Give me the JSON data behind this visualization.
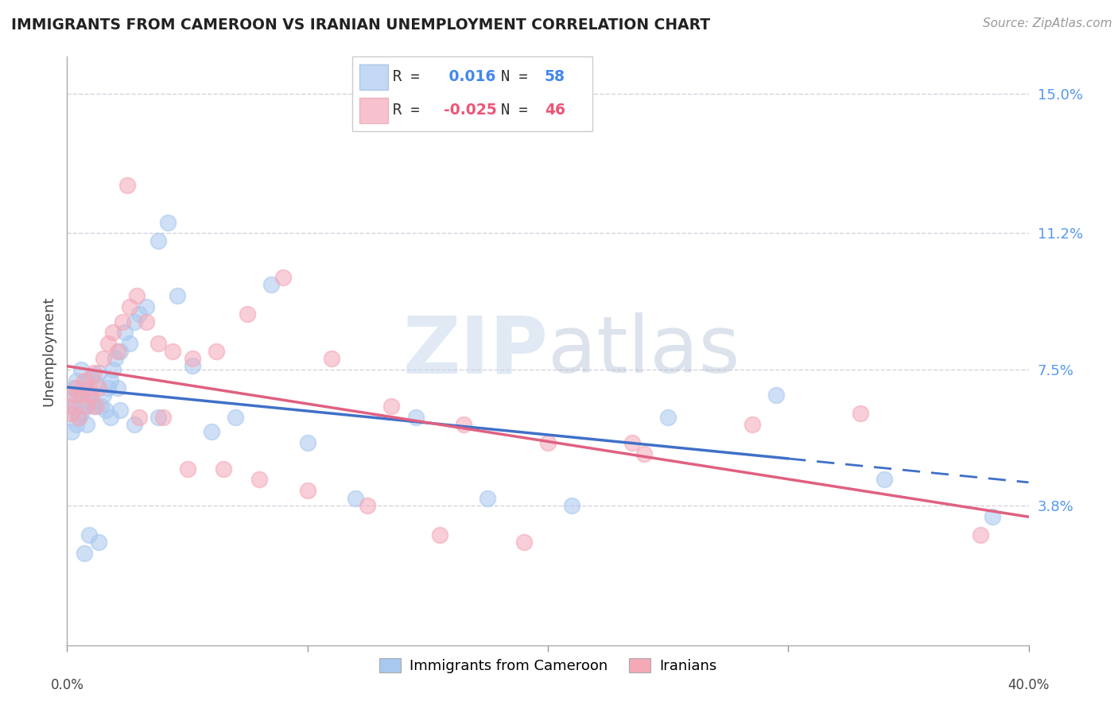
{
  "title": "IMMIGRANTS FROM CAMEROON VS IRANIAN UNEMPLOYMENT CORRELATION CHART",
  "source": "Source: ZipAtlas.com",
  "ylabel": "Unemployment",
  "xmin": 0.0,
  "xmax": 0.4,
  "ymin": 0.0,
  "ymax": 0.16,
  "ytick_vals": [
    0.038,
    0.075,
    0.112,
    0.15
  ],
  "ytick_labels": [
    "3.8%",
    "7.5%",
    "11.2%",
    "15.0%"
  ],
  "legend1_r": " 0.016",
  "legend1_n": "58",
  "legend2_r": "-0.025",
  "legend2_n": "46",
  "blue_color": "#A8C8F0",
  "pink_color": "#F4A8B8",
  "blue_line_color": "#4070C8",
  "pink_line_color": "#E06080",
  "grid_color": "#C8C8D8",
  "watermark_zip": "ZIP",
  "watermark_atlas": "atlas",
  "blue_scatter_x": [
    0.001,
    0.002,
    0.002,
    0.003,
    0.003,
    0.004,
    0.004,
    0.005,
    0.005,
    0.006,
    0.006,
    0.007,
    0.007,
    0.008,
    0.008,
    0.009,
    0.01,
    0.01,
    0.011,
    0.012,
    0.013,
    0.014,
    0.015,
    0.016,
    0.017,
    0.018,
    0.019,
    0.02,
    0.021,
    0.022,
    0.024,
    0.026,
    0.028,
    0.03,
    0.033,
    0.038,
    0.042,
    0.046,
    0.052,
    0.06,
    0.07,
    0.085,
    0.1,
    0.12,
    0.145,
    0.175,
    0.21,
    0.25,
    0.295,
    0.34,
    0.385,
    0.028,
    0.038,
    0.018,
    0.022,
    0.009,
    0.013,
    0.007
  ],
  "blue_scatter_y": [
    0.067,
    0.063,
    0.058,
    0.065,
    0.07,
    0.06,
    0.072,
    0.068,
    0.062,
    0.075,
    0.063,
    0.069,
    0.065,
    0.072,
    0.06,
    0.068,
    0.066,
    0.073,
    0.065,
    0.071,
    0.074,
    0.065,
    0.068,
    0.064,
    0.07,
    0.072,
    0.075,
    0.078,
    0.07,
    0.08,
    0.085,
    0.082,
    0.088,
    0.09,
    0.092,
    0.11,
    0.115,
    0.095,
    0.076,
    0.058,
    0.062,
    0.098,
    0.055,
    0.04,
    0.062,
    0.04,
    0.038,
    0.062,
    0.068,
    0.045,
    0.035,
    0.06,
    0.062,
    0.062,
    0.064,
    0.03,
    0.028,
    0.025
  ],
  "pink_scatter_x": [
    0.001,
    0.002,
    0.003,
    0.004,
    0.005,
    0.006,
    0.007,
    0.008,
    0.009,
    0.01,
    0.011,
    0.012,
    0.013,
    0.015,
    0.017,
    0.019,
    0.021,
    0.023,
    0.026,
    0.029,
    0.033,
    0.038,
    0.044,
    0.052,
    0.062,
    0.075,
    0.09,
    0.11,
    0.135,
    0.165,
    0.2,
    0.24,
    0.285,
    0.33,
    0.38,
    0.025,
    0.03,
    0.04,
    0.05,
    0.065,
    0.08,
    0.1,
    0.125,
    0.155,
    0.19,
    0.235
  ],
  "pink_scatter_y": [
    0.065,
    0.063,
    0.068,
    0.07,
    0.062,
    0.068,
    0.072,
    0.065,
    0.07,
    0.068,
    0.074,
    0.065,
    0.07,
    0.078,
    0.082,
    0.085,
    0.08,
    0.088,
    0.092,
    0.095,
    0.088,
    0.082,
    0.08,
    0.078,
    0.08,
    0.09,
    0.1,
    0.078,
    0.065,
    0.06,
    0.055,
    0.052,
    0.06,
    0.063,
    0.03,
    0.125,
    0.062,
    0.062,
    0.048,
    0.048,
    0.045,
    0.042,
    0.038,
    0.03,
    0.028,
    0.055
  ]
}
